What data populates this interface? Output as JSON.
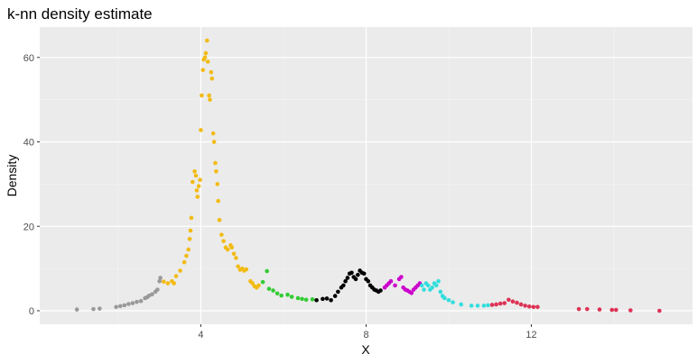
{
  "chart_data": {
    "type": "scatter",
    "title": "k-nn density estimate",
    "xlabel": "X",
    "ylabel": "Density",
    "xlim": [
      0.1,
      15.9
    ],
    "ylim": [
      -3.2,
      67.2
    ],
    "x_ticks": [
      4,
      8,
      12
    ],
    "y_ticks": [
      0,
      20,
      40,
      60
    ],
    "grid": true,
    "legend": "none",
    "series": [
      {
        "color": "#999999",
        "points": [
          [
            1.0,
            0.3
          ],
          [
            1.4,
            0.4
          ],
          [
            1.55,
            0.5
          ],
          [
            1.95,
            0.9
          ],
          [
            2.05,
            1.1
          ],
          [
            2.15,
            1.3
          ],
          [
            2.25,
            1.6
          ],
          [
            2.35,
            1.8
          ],
          [
            2.45,
            2.1
          ],
          [
            2.55,
            2.3
          ],
          [
            2.65,
            3.0
          ],
          [
            2.7,
            3.2
          ],
          [
            2.75,
            3.6
          ],
          [
            2.82,
            3.9
          ],
          [
            2.9,
            4.5
          ],
          [
            2.95,
            5.0
          ],
          [
            3.0,
            7.0
          ],
          [
            3.02,
            7.8
          ]
        ]
      },
      {
        "color": "#F2BB13",
        "points": [
          [
            3.1,
            6.9
          ],
          [
            3.2,
            6.5
          ],
          [
            3.3,
            7.0
          ],
          [
            3.35,
            6.5
          ],
          [
            3.4,
            8.2
          ],
          [
            3.5,
            9.5
          ],
          [
            3.6,
            11.5
          ],
          [
            3.65,
            13.0
          ],
          [
            3.7,
            14.5
          ],
          [
            3.73,
            17.0
          ],
          [
            3.75,
            19.0
          ],
          [
            3.77,
            22.0
          ],
          [
            3.8,
            30.5
          ],
          [
            3.85,
            33.0
          ],
          [
            3.88,
            32.0
          ],
          [
            3.9,
            28.5
          ],
          [
            3.92,
            27.0
          ],
          [
            3.95,
            29.5
          ],
          [
            3.98,
            31.0
          ],
          [
            4.0,
            42.8
          ],
          [
            4.02,
            51.0
          ],
          [
            4.05,
            57.0
          ],
          [
            4.07,
            59.5
          ],
          [
            4.1,
            60.0
          ],
          [
            4.12,
            61.0
          ],
          [
            4.15,
            64.0
          ],
          [
            4.17,
            59.0
          ],
          [
            4.2,
            51.0
          ],
          [
            4.22,
            50.0
          ],
          [
            4.25,
            56.5
          ],
          [
            4.27,
            55.0
          ],
          [
            4.3,
            42.0
          ],
          [
            4.32,
            40.0
          ],
          [
            4.35,
            35.0
          ],
          [
            4.37,
            33.0
          ],
          [
            4.4,
            30.0
          ],
          [
            4.42,
            26.0
          ],
          [
            4.45,
            21.5
          ],
          [
            4.5,
            18.0
          ],
          [
            4.55,
            16.5
          ],
          [
            4.6,
            15.0
          ],
          [
            4.65,
            14.5
          ],
          [
            4.72,
            15.5
          ],
          [
            4.75,
            15.0
          ],
          [
            4.8,
            13.5
          ],
          [
            4.85,
            12.5
          ],
          [
            4.9,
            10.5
          ],
          [
            4.95,
            9.7
          ],
          [
            5.0,
            10.0
          ],
          [
            5.05,
            9.5
          ],
          [
            5.1,
            9.8
          ],
          [
            5.2,
            7.0
          ],
          [
            5.25,
            6.5
          ],
          [
            5.3,
            5.8
          ],
          [
            5.35,
            5.5
          ],
          [
            5.4,
            6.0
          ]
        ]
      },
      {
        "color": "#33CC33",
        "points": [
          [
            5.5,
            6.8
          ],
          [
            5.6,
            9.4
          ],
          [
            5.65,
            5.2
          ],
          [
            5.75,
            4.8
          ],
          [
            5.85,
            4.1
          ],
          [
            5.95,
            3.6
          ],
          [
            6.1,
            3.8
          ],
          [
            6.2,
            3.3
          ],
          [
            6.35,
            3.0
          ],
          [
            6.45,
            2.8
          ],
          [
            6.55,
            2.6
          ],
          [
            6.7,
            2.7
          ]
        ]
      },
      {
        "color": "#000000",
        "points": [
          [
            6.8,
            2.5
          ],
          [
            6.95,
            2.8
          ],
          [
            7.05,
            2.9
          ],
          [
            7.15,
            2.5
          ],
          [
            7.25,
            3.5
          ],
          [
            7.32,
            4.5
          ],
          [
            7.4,
            5.5
          ],
          [
            7.45,
            6.0
          ],
          [
            7.5,
            7.0
          ],
          [
            7.55,
            7.8
          ],
          [
            7.6,
            8.8
          ],
          [
            7.65,
            9.0
          ],
          [
            7.7,
            8.0
          ],
          [
            7.75,
            7.5
          ],
          [
            7.8,
            8.5
          ],
          [
            7.85,
            9.5
          ],
          [
            7.9,
            9.0
          ],
          [
            7.95,
            8.8
          ],
          [
            8.0,
            7.5
          ],
          [
            8.05,
            7.0
          ],
          [
            8.1,
            6.0
          ],
          [
            8.15,
            5.5
          ],
          [
            8.2,
            5.0
          ],
          [
            8.25,
            4.8
          ],
          [
            8.3,
            4.5
          ],
          [
            8.35,
            4.8
          ]
        ]
      },
      {
        "color": "#CC00CC",
        "points": [
          [
            8.45,
            5.5
          ],
          [
            8.5,
            6.0
          ],
          [
            8.55,
            6.5
          ],
          [
            8.6,
            7.0
          ],
          [
            8.7,
            6.0
          ],
          [
            8.8,
            7.5
          ],
          [
            8.85,
            8.0
          ],
          [
            8.9,
            5.5
          ],
          [
            8.95,
            5.0
          ],
          [
            9.0,
            4.8
          ],
          [
            9.05,
            4.5
          ],
          [
            9.1,
            4.2
          ],
          [
            9.15,
            5.0
          ],
          [
            9.2,
            5.5
          ],
          [
            9.25,
            6.0
          ],
          [
            9.3,
            6.5
          ]
        ]
      },
      {
        "color": "#33DDDD",
        "points": [
          [
            9.35,
            6.0
          ],
          [
            9.4,
            5.0
          ],
          [
            9.45,
            6.5
          ],
          [
            9.5,
            6.0
          ],
          [
            9.55,
            5.0
          ],
          [
            9.6,
            5.5
          ],
          [
            9.65,
            6.5
          ],
          [
            9.7,
            6.0
          ],
          [
            9.75,
            7.0
          ],
          [
            9.8,
            4.5
          ],
          [
            9.85,
            3.5
          ],
          [
            9.9,
            3.0
          ],
          [
            10.0,
            2.5
          ],
          [
            10.1,
            2.0
          ],
          [
            10.3,
            1.5
          ],
          [
            10.55,
            1.2
          ],
          [
            10.7,
            1.2
          ],
          [
            10.85,
            1.2
          ],
          [
            10.95,
            1.3
          ]
        ]
      },
      {
        "color": "#DD3355",
        "points": [
          [
            11.05,
            1.4
          ],
          [
            11.15,
            1.5
          ],
          [
            11.25,
            1.7
          ],
          [
            11.35,
            1.8
          ],
          [
            11.45,
            2.6
          ],
          [
            11.55,
            2.2
          ],
          [
            11.65,
            1.9
          ],
          [
            11.75,
            1.5
          ],
          [
            11.85,
            1.2
          ],
          [
            11.95,
            1.0
          ],
          [
            12.05,
            0.9
          ],
          [
            12.15,
            0.9
          ],
          [
            13.15,
            0.4
          ],
          [
            13.35,
            0.4
          ],
          [
            13.65,
            0.3
          ],
          [
            13.95,
            0.2
          ],
          [
            14.05,
            0.2
          ],
          [
            14.4,
            0.1
          ],
          [
            15.1,
            0.0
          ]
        ]
      }
    ]
  }
}
